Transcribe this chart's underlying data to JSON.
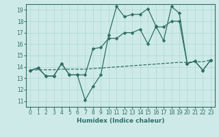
{
  "xlabel": "Humidex (Indice chaleur)",
  "xlim": [
    -0.5,
    23.5
  ],
  "ylim": [
    10.5,
    19.5
  ],
  "xticks": [
    0,
    1,
    2,
    3,
    4,
    5,
    6,
    7,
    8,
    9,
    10,
    11,
    12,
    13,
    14,
    15,
    16,
    17,
    18,
    19,
    20,
    21,
    22,
    23
  ],
  "yticks": [
    11,
    12,
    13,
    14,
    15,
    16,
    17,
    18,
    19
  ],
  "bg_color": "#ceeae8",
  "grid_color": "#a8d8d4",
  "line_color": "#2e6e66",
  "series1_x": [
    0,
    1,
    2,
    3,
    4,
    5,
    6,
    7,
    8,
    9,
    10,
    11,
    12,
    13,
    14,
    15,
    16,
    17,
    18,
    19,
    20,
    21,
    22,
    23
  ],
  "series1_y": [
    13.7,
    13.9,
    13.2,
    13.2,
    14.3,
    13.3,
    13.3,
    11.1,
    12.3,
    13.3,
    16.8,
    19.3,
    18.4,
    18.6,
    18.6,
    19.1,
    17.6,
    16.3,
    19.3,
    18.7,
    14.3,
    14.5,
    13.7,
    14.6
  ],
  "series2_x": [
    0,
    1,
    2,
    3,
    4,
    5,
    6,
    7,
    8,
    9,
    10,
    11,
    12,
    13,
    14,
    15,
    16,
    17,
    18,
    19,
    20,
    21,
    22,
    23
  ],
  "series2_y": [
    13.7,
    13.9,
    13.2,
    13.2,
    14.3,
    13.3,
    13.3,
    13.3,
    15.6,
    15.7,
    16.5,
    16.5,
    17.0,
    17.0,
    17.3,
    16.0,
    17.5,
    17.5,
    18.0,
    18.0,
    14.3,
    14.5,
    13.7,
    14.6
  ],
  "series3_x": [
    0,
    1,
    2,
    3,
    4,
    5,
    6,
    7,
    8,
    9,
    10,
    11,
    12,
    13,
    14,
    15,
    16,
    17,
    18,
    19,
    20,
    21,
    22,
    23
  ],
  "series3_y": [
    13.7,
    13.75,
    13.75,
    13.75,
    13.8,
    13.8,
    13.8,
    13.8,
    13.85,
    13.9,
    13.95,
    14.0,
    14.05,
    14.1,
    14.15,
    14.2,
    14.25,
    14.3,
    14.35,
    14.4,
    14.4,
    14.45,
    14.45,
    14.6
  ]
}
